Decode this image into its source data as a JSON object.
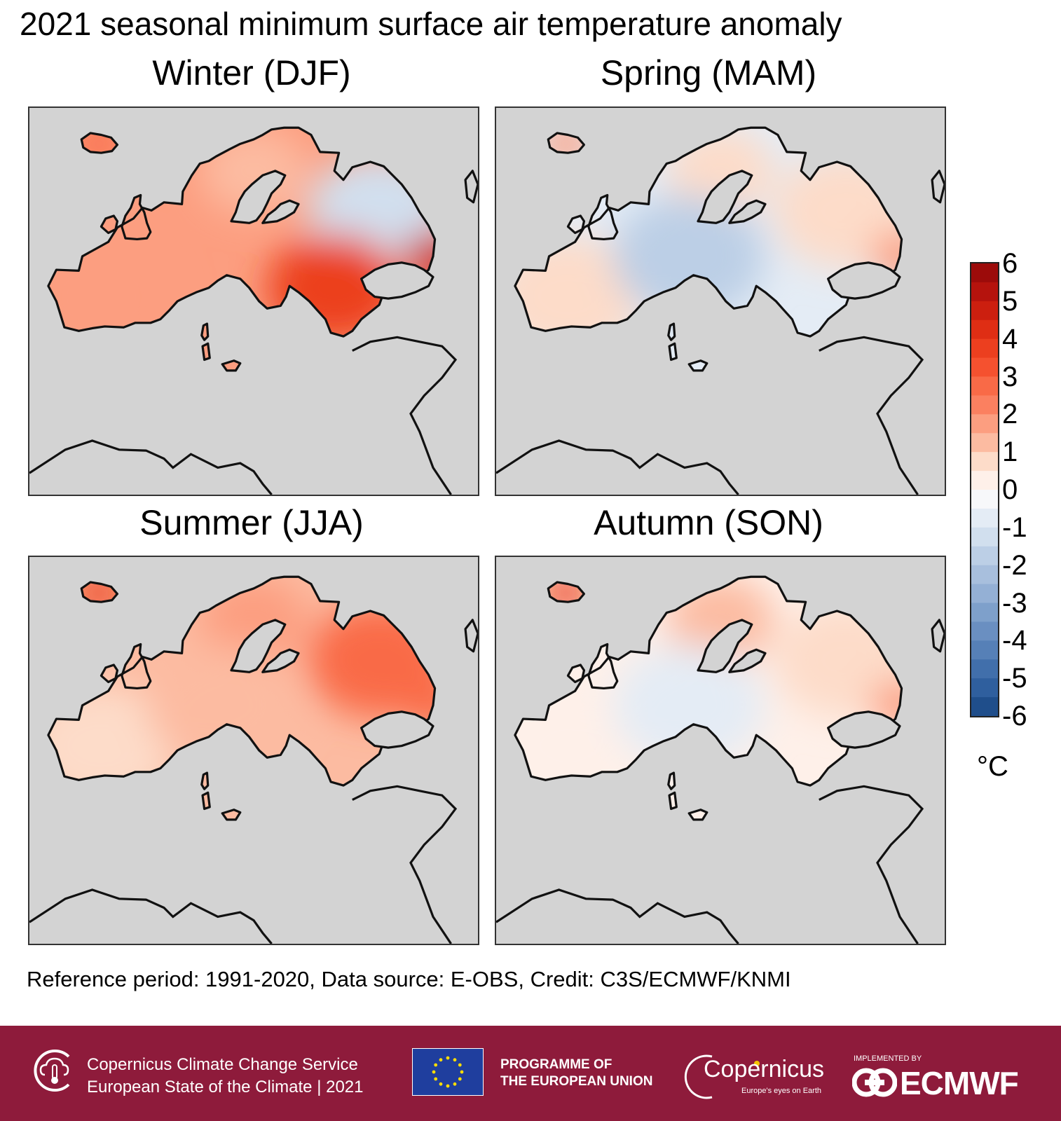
{
  "title": "2021 seasonal minimum surface air temperature anomaly",
  "panels": [
    {
      "title": "Winter (DJF)",
      "overall_anomaly": 1.6,
      "regions": {
        "iceland": 2.5,
        "scandinavia": 1.2,
        "northeast": -1.0,
        "west": 1.5,
        "southeast": 3.5,
        "caucasus": 4.5
      }
    },
    {
      "title": "Spring (MAM)",
      "overall_anomaly": -0.8,
      "regions": {
        "iceland": 1.5,
        "scandinavia": 0.8,
        "northeast": 0.8,
        "west": 0.6,
        "central": -1.8,
        "caucasus": 1.5
      }
    },
    {
      "title": "Summer (JJA)",
      "overall_anomaly": 1.3,
      "regions": {
        "iceland": 3.5,
        "scandinavia": 1.5,
        "northeast": 2.5,
        "west": 0.6,
        "central": 1.0,
        "caucasus": 2.5
      }
    },
    {
      "title": "Autumn (SON)",
      "overall_anomaly": 0.3,
      "regions": {
        "iceland": 3.5,
        "scandinavia": 1.0,
        "northeast": 0.8,
        "west": 0.3,
        "central": -0.8,
        "caucasus": 1.5
      }
    }
  ],
  "colorbar": {
    "ticks": [
      "6",
      "5",
      "4",
      "3",
      "2",
      "1",
      "0",
      "-1",
      "-2",
      "-3",
      "-4",
      "-5",
      "-6"
    ],
    "min": -6,
    "max": 6,
    "step": 0.5,
    "unit": "°C",
    "colors_high": [
      "#fef0e9",
      "#fddcc9",
      "#fcbba1",
      "#fc9e80",
      "#fb8060",
      "#f96a47",
      "#f5512f",
      "#ec3f1f",
      "#df2e14",
      "#cc1f0f",
      "#b5130d",
      "#9c0b0a",
      "#7a0006"
    ],
    "colors_low": [
      "#f7f8fa",
      "#e4ecf5",
      "#d1dfee",
      "#bccfe6",
      "#a8bfdd",
      "#94b0d5",
      "#7ea0cb",
      "#6a8fc1",
      "#5680b7",
      "#416fab",
      "#2f5f9e",
      "#1f4e8b",
      "#103b73"
    ]
  },
  "caption": "Reference period: 1991-2020, Data source: E-OBS, Credit: C3S/ECMWF/KNMI",
  "footer": {
    "service_line1": "Copernicus Climate Change Service",
    "service_line2": "European State of the Climate | 2021",
    "programme_line1": "PROGRAMME OF",
    "programme_line2": "THE EUROPEAN UNION",
    "copernicus": "Copernicus",
    "copernicus_tagline": "Europe's eyes on Earth",
    "implemented_by": "IMPLEMENTED BY",
    "ecmwf": "ECMWF",
    "background": "#8e1b3b"
  }
}
